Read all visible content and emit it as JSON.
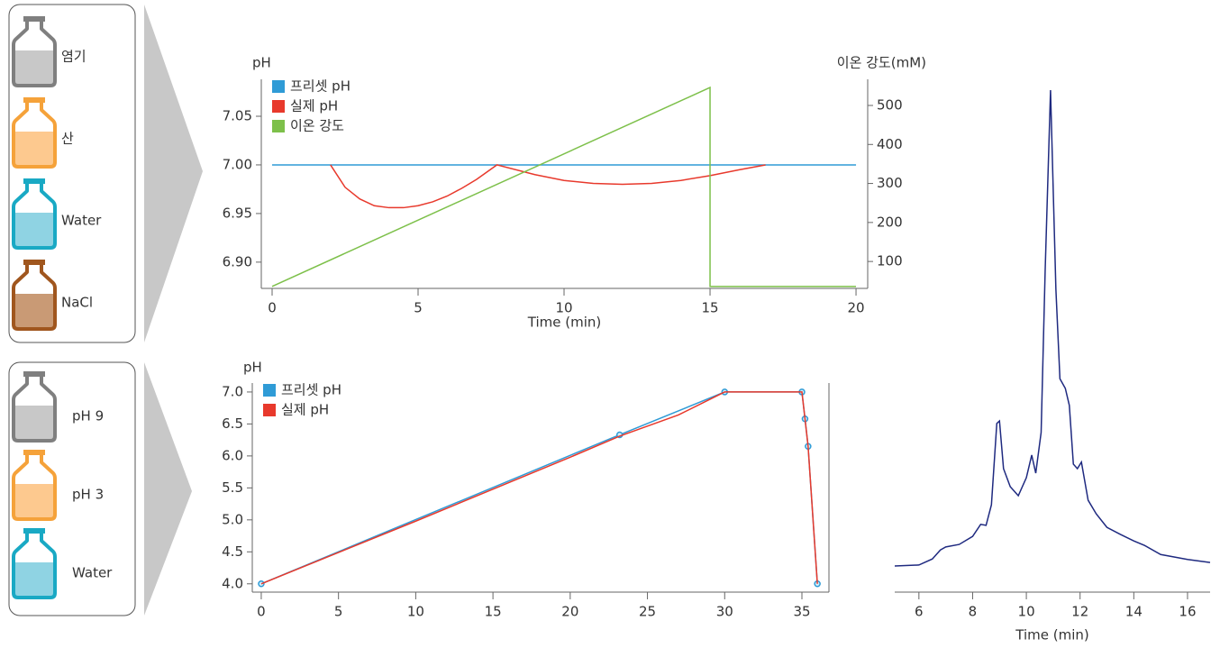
{
  "reagents_top": [
    "염기",
    "산",
    "Water",
    "NaCl"
  ],
  "reagents_bottom": [
    "pH 9",
    "pH 3",
    "Water"
  ],
  "chart_data": [
    {
      "type": "line",
      "xlabel": "Time (min)",
      "ylabel": "pH",
      "y2label": "이온 강도(mM)",
      "xlim": [
        -0.37,
        20.4
      ],
      "xticks": [
        0,
        5,
        10,
        15,
        20
      ],
      "ylim": [
        6.873,
        7.088
      ],
      "yticks": [
        {
          "value": 6.9,
          "label": "6.90"
        },
        {
          "value": 6.95,
          "label": "6.95"
        },
        {
          "value": 7.0,
          "label": "7.00"
        },
        {
          "value": 7.05,
          "label": "7.05"
        }
      ],
      "y2lim": [
        31,
        567
      ],
      "y2ticks": [
        100,
        200,
        300,
        400,
        500
      ],
      "series": [
        {
          "name": "프리셋 pH",
          "color": "#2f9bd6",
          "x": [
            0,
            20
          ],
          "values": [
            7.0,
            7.0
          ]
        },
        {
          "name": "실제 pH",
          "color": "#e8392c",
          "x": [
            2,
            2.5,
            3,
            3.5,
            4,
            4.5,
            5,
            5.5,
            6,
            6.5,
            7,
            7.7,
            9,
            10,
            11,
            12,
            13,
            14,
            15,
            16,
            16.9
          ],
          "values": [
            7.0,
            6.977,
            6.965,
            6.958,
            6.956,
            6.956,
            6.958,
            6.962,
            6.968,
            6.976,
            6.985,
            7.0,
            6.99,
            6.984,
            6.981,
            6.98,
            6.981,
            6.984,
            6.989,
            6.995,
            7.0
          ]
        },
        {
          "name": "이온 강도",
          "color": "#7dc04a",
          "axis": "y2",
          "x": [
            0,
            15,
            15,
            20
          ],
          "values": [
            36,
            546,
            36,
            36
          ]
        }
      ]
    },
    {
      "type": "line",
      "ylabel": "pH",
      "xlim": [
        -0.58,
        36.75
      ],
      "xticks": [
        0,
        5,
        10,
        15,
        20,
        25,
        30,
        35
      ],
      "ylim": [
        3.87,
        7.14
      ],
      "yticks": [
        {
          "value": 4,
          "label": "4.0"
        },
        {
          "value": 4.5,
          "label": "4.5"
        },
        {
          "value": 5,
          "label": "5.0"
        },
        {
          "value": 5.5,
          "label": "5.5"
        },
        {
          "value": 6,
          "label": "6.0"
        },
        {
          "value": 6.5,
          "label": "6.5"
        },
        {
          "value": 7,
          "label": "7.0"
        }
      ],
      "series": [
        {
          "name": "프리셋 pH",
          "color": "#2f9bd6",
          "markers": true,
          "x": [
            0,
            23.2,
            30,
            35,
            35.2,
            35.4,
            36
          ],
          "values": [
            4.0,
            6.33,
            7.0,
            7.0,
            6.58,
            6.15,
            4.0
          ]
        },
        {
          "name": "실제 pH",
          "color": "#e8392c",
          "x": [
            0,
            10,
            20,
            23.2,
            27,
            30,
            35,
            35.2,
            35.4,
            36
          ],
          "values": [
            4.0,
            4.98,
            5.98,
            6.31,
            6.64,
            7.0,
            7.0,
            6.58,
            6.15,
            4.0
          ]
        }
      ]
    },
    {
      "type": "line",
      "xlabel": "Time (min)",
      "xlim": [
        5.1,
        16.84
      ],
      "xticks": [
        6,
        8,
        10,
        12,
        14,
        16
      ],
      "ylim": [
        0,
        100
      ],
      "series": [
        {
          "color": "#1f2a80",
          "x": [
            5.1,
            6.0,
            6.5,
            6.8,
            7.0,
            7.5,
            8.0,
            8.3,
            8.5,
            8.7,
            8.9,
            9.0,
            9.15,
            9.4,
            9.7,
            10.0,
            10.2,
            10.35,
            10.55,
            10.7,
            10.9,
            11.1,
            11.25,
            11.45,
            11.6,
            11.75,
            11.9,
            12.05,
            12.3,
            12.6,
            13.0,
            13.5,
            14.0,
            14.4,
            15.0,
            16.0,
            16.84
          ],
          "values": [
            5.2,
            5.4,
            6.6,
            8.4,
            9.0,
            9.5,
            11.1,
            13.5,
            13.3,
            17.4,
            33.6,
            34.1,
            24.6,
            21.0,
            19.2,
            22.8,
            27.3,
            23.7,
            31.8,
            64.0,
            100,
            60.3,
            42.5,
            40.6,
            37.2,
            25.5,
            24.6,
            25.9,
            18.3,
            15.6,
            12.9,
            11.5,
            10.2,
            9.3,
            7.5,
            6.5,
            5.9
          ]
        }
      ]
    }
  ]
}
